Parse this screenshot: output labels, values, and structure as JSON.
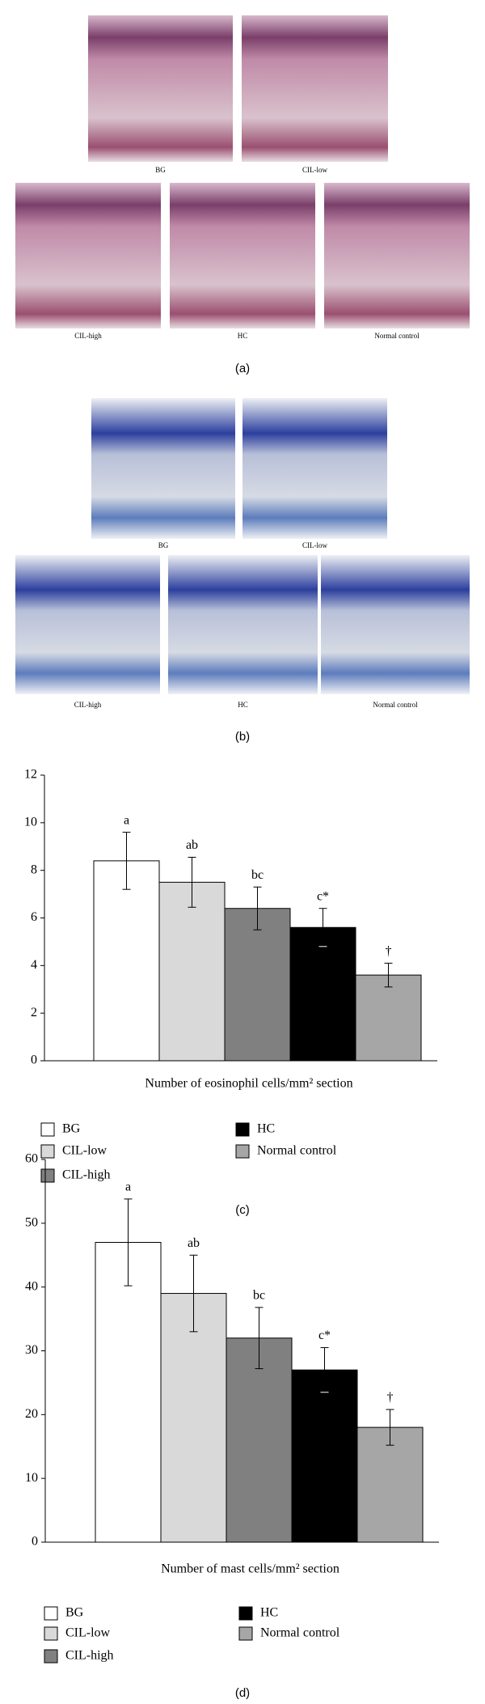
{
  "figure_a": {
    "label": "(a)",
    "images": [
      "BG",
      "CIL-low",
      "CIL-high",
      "HC",
      "Normal control"
    ]
  },
  "figure_b": {
    "label": "(b)",
    "images": [
      "BG",
      "CIL-low",
      "CIL-high",
      "HC",
      "Normal control"
    ]
  },
  "chart_data": [
    {
      "type": "bar",
      "label": "(c)",
      "xlabel": "Number of eosinophil cells/mm² section",
      "categories": [
        "BG",
        "CIL-low",
        "CIL-high",
        "HC",
        "Normal control"
      ],
      "values": [
        8.4,
        7.5,
        6.4,
        5.6,
        3.6
      ],
      "errors": [
        1.2,
        1.05,
        0.9,
        0.8,
        0.5
      ],
      "annotations": [
        "a",
        "ab",
        "bc",
        "c*",
        "†"
      ],
      "colors": [
        "#ffffff",
        "#d9d9d9",
        "#808080",
        "#000000",
        "#a6a6a6"
      ],
      "ylim": [
        0,
        12
      ],
      "yticks": [
        0,
        2,
        4,
        6,
        8,
        10,
        12
      ]
    },
    {
      "type": "bar",
      "label": "(d)",
      "xlabel": "Number of mast cells/mm² section",
      "categories": [
        "BG",
        "CIL-low",
        "CIL-high",
        "HC",
        "Normal control"
      ],
      "values": [
        47,
        39,
        32,
        27,
        18
      ],
      "errors": [
        6.8,
        6,
        4.8,
        3.5,
        2.8
      ],
      "annotations": [
        "a",
        "ab",
        "bc",
        "c*",
        "†"
      ],
      "colors": [
        "#ffffff",
        "#d9d9d9",
        "#808080",
        "#000000",
        "#a6a6a6"
      ],
      "ylim": [
        0,
        60
      ],
      "yticks": [
        0,
        10,
        20,
        30,
        40,
        50,
        60
      ]
    }
  ]
}
